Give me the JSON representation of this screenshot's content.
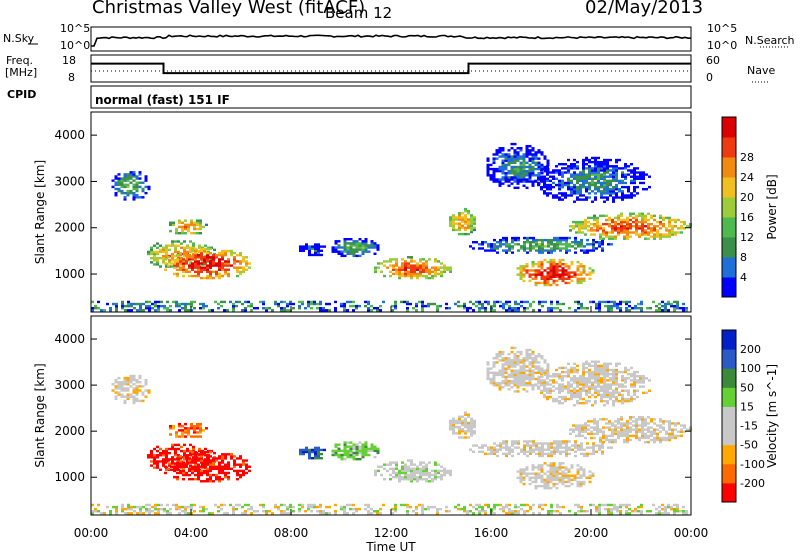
{
  "header": {
    "station": "Christmas Valley West (fitACF)",
    "beam": "Beam 12",
    "date": "02/May/2013"
  },
  "strip": {
    "nsky_label": "N.Sky",
    "nsearch_label": "N.Search",
    "noise_left_ticks": [
      "10^5",
      "10^0"
    ],
    "noise_right_ticks": [
      "10^5",
      "10^0"
    ],
    "freq_label": "Freq.",
    "freq_unit": "[MHz]",
    "freq_ticks": [
      "18",
      "8"
    ],
    "nave_label": "Nave",
    "nave_ticks": [
      "60",
      "0"
    ],
    "cpid_label": "CPID",
    "cpid_text": "normal (fast) 151 IF"
  },
  "colors": {
    "power_scale": [
      "#0000ff",
      "#1e6fd8",
      "#3a8f4a",
      "#4fb84f",
      "#9ccc3a",
      "#f0c020",
      "#f08a10",
      "#ee3a10",
      "#dd0000"
    ],
    "velocity_scale": [
      "#ff0000",
      "#ff6a00",
      "#ffa800",
      "#c8c8c8",
      "#c8c8c8",
      "#64d034",
      "#3a8a3a",
      "#2a5ac8",
      "#0020c8"
    ]
  },
  "chart_data": [
    {
      "type": "heatmap",
      "title": "",
      "xlabel": "Time UT",
      "ylabel": "Slant Range [km]",
      "xticks": [
        "00:00",
        "04:00",
        "08:00",
        "12:00",
        "16:00",
        "20:00",
        "00:00"
      ],
      "yticks": [
        "1000",
        "2000",
        "3000",
        "4000"
      ],
      "xlim_hours": [
        0,
        24
      ],
      "ylim_km": [
        180,
        4500
      ],
      "colorbar_label": "Power [dB]",
      "colorbar_ticks": [
        "4",
        "8",
        "12",
        "16",
        "20",
        "24",
        "28"
      ],
      "colorbar_range": [
        0,
        30
      ]
    },
    {
      "type": "heatmap",
      "title": "",
      "xlabel": "Time UT",
      "ylabel": "Slant Range [km]",
      "xticks": [
        "00:00",
        "04:00",
        "08:00",
        "12:00",
        "16:00",
        "20:00",
        "00:00"
      ],
      "yticks": [
        "1000",
        "2000",
        "3000",
        "4000"
      ],
      "xlim_hours": [
        0,
        24
      ],
      "ylim_km": [
        180,
        4500
      ],
      "colorbar_label": "Velocity [m s^-1]",
      "colorbar_ticks": [
        "200",
        "100",
        "50",
        "15",
        "-15",
        "-50",
        "-100",
        "-200"
      ],
      "colorbar_range": [
        -250,
        250
      ]
    },
    {
      "type": "line",
      "name": "frequency",
      "x_hours": [
        0,
        2.9,
        2.9,
        15.1,
        15.1,
        24
      ],
      "y_mhz": [
        14.8,
        14.8,
        11.3,
        11.3,
        14.8,
        14.8
      ],
      "ylim": [
        8,
        18
      ]
    }
  ]
}
